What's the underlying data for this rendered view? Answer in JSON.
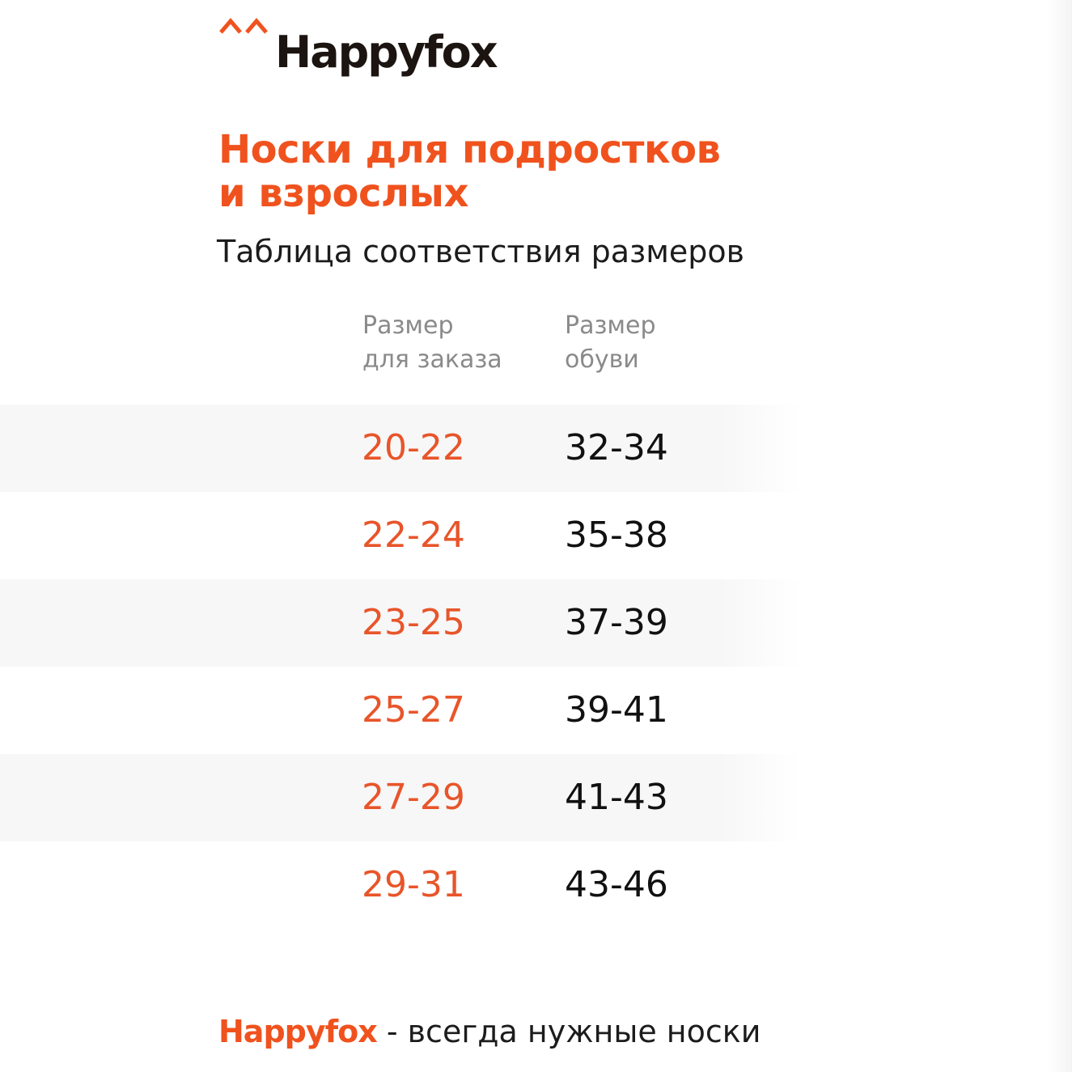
{
  "logo": {
    "icon": "double-caret-icon",
    "text": "Happyfox",
    "accent_color": "#f0521e"
  },
  "title": {
    "line1": "Носки для подростков",
    "line2": "и взрослых"
  },
  "subtitle": "Таблица соответствия размеров",
  "table": {
    "headers": {
      "order_line1": "Размер",
      "order_line2": "для заказа",
      "shoe_line1": "Размер",
      "shoe_line2": "обуви"
    },
    "rows": [
      {
        "order": "20-22",
        "shoe": "32-34"
      },
      {
        "order": "22-24",
        "shoe": "35-38"
      },
      {
        "order": "23-25",
        "shoe": "37-39"
      },
      {
        "order": "25-27",
        "shoe": "39-41"
      },
      {
        "order": "27-29",
        "shoe": "41-43"
      },
      {
        "order": "29-31",
        "shoe": "43-46"
      }
    ]
  },
  "footer": {
    "brand": "Happyfox",
    "tagline": " - всегда нужные носки"
  },
  "colors": {
    "accent": "#f0521e",
    "order_text": "#e8552a",
    "row_shade": "#f7f7f7",
    "header_gray": "#8a8a8a"
  }
}
